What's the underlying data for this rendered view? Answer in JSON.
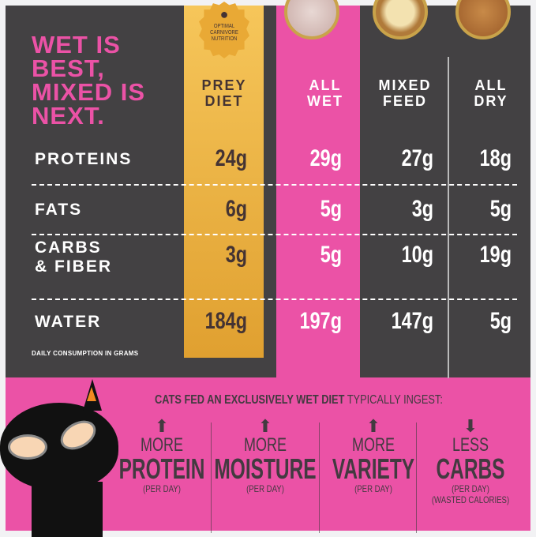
{
  "headline": "WET IS BEST, MIXED IS NEXT.",
  "badge": {
    "lines": [
      "OPTIMAL",
      "CARNIVORE",
      "NUTRITION"
    ],
    "icon": "mouse-icon"
  },
  "columns": [
    {
      "label1": "PREY",
      "label2": "DIET"
    },
    {
      "label1": "ALL",
      "label2": "WET"
    },
    {
      "label1": "MIXED",
      "label2": "FEED"
    },
    {
      "label1": "ALL",
      "label2": "DRY"
    }
  ],
  "rows": [
    {
      "label1": "PROTEINS",
      "label2": "",
      "values": [
        "24g",
        "29g",
        "27g",
        "18g"
      ]
    },
    {
      "label1": "FATS",
      "label2": "",
      "values": [
        "6g",
        "5g",
        "3g",
        "5g"
      ]
    },
    {
      "label1": "CARBS",
      "label2": "& FIBER",
      "values": [
        "3g",
        "5g",
        "10g",
        "19g"
      ]
    },
    {
      "label1": "WATER",
      "label2": "",
      "values": [
        "184g",
        "197g",
        "147g",
        "5g"
      ]
    }
  ],
  "note": "DAILY CONSUMPTION IN GRAMS",
  "tagline": {
    "bold": "CATS FED AN EXCLUSIVELY WET DIET",
    "rest": " TYPICALLY INGEST:"
  },
  "benefits": [
    {
      "arrow": "⬆",
      "small": "MORE",
      "big": "PROTEIN",
      "sub": "(PER DAY)",
      "sub2": ""
    },
    {
      "arrow": "⬆",
      "small": "MORE",
      "big": "MOISTURE",
      "sub": "(PER DAY)",
      "sub2": ""
    },
    {
      "arrow": "⬆",
      "small": "MORE",
      "big": "VARIETY",
      "sub": "(PER DAY)",
      "sub2": ""
    },
    {
      "arrow": "⬇",
      "small": "LESS",
      "big": "CARBS",
      "sub": "(PER DAY)",
      "sub2": "(WASTED CALORIES)"
    }
  ],
  "colors": {
    "pink": "#eb52a6",
    "dark": "#434143",
    "gold": "#e9a935"
  }
}
